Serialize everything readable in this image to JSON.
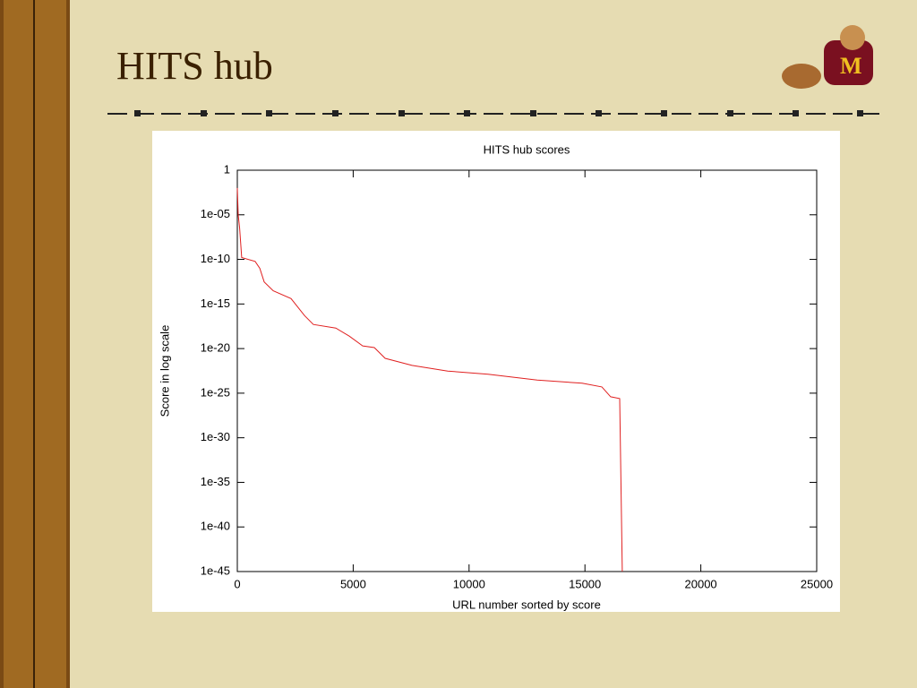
{
  "slide": {
    "title": "HITS hub"
  },
  "chart_data": {
    "type": "line",
    "title": "HITS hub scores",
    "x_label": "URL number sorted by score",
    "y_label": "Score in log scale",
    "log_y": true,
    "grid": false,
    "color": "#e02020",
    "x": [
      0,
      40,
      100,
      190,
      770,
      970,
      1160,
      1550,
      2320,
      2900,
      3280,
      4250,
      4830,
      5410,
      5910,
      6380,
      7540,
      9080,
      10820,
      12940,
      14880,
      15730,
      16110,
      16500,
      16610
    ],
    "values": [
      0.01,
      1e-05,
      3e-07,
      1.6e-10,
      6e-11,
      1e-11,
      3e-13,
      3e-14,
      4e-15,
      5e-17,
      5e-18,
      2e-18,
      2.5e-19,
      2e-20,
      1.3e-20,
      8e-22,
      1.3e-22,
      3e-23,
      1.3e-23,
      3e-24,
      1.3e-24,
      5e-25,
      4e-26,
      2.5e-26,
      1e-45
    ],
    "xlim": [
      0,
      25000
    ],
    "xticks": [
      0,
      5000,
      10000,
      15000,
      20000,
      25000
    ],
    "ylim": [
      1e-45,
      1
    ],
    "yticks": [
      1,
      {
        "value": 1e-05,
        "label": "1e-05"
      },
      {
        "value": 1e-10,
        "label": "1e-10"
      },
      {
        "value": 1e-15,
        "label": "1e-15"
      },
      {
        "value": 1e-20,
        "label": "1e-20"
      },
      {
        "value": 1e-25,
        "label": "1e-25"
      },
      {
        "value": 1e-30,
        "label": "1e-30"
      },
      {
        "value": 1e-35,
        "label": "1e-35"
      },
      {
        "value": 1e-40,
        "label": "1e-40"
      },
      {
        "value": 1e-45,
        "label": "1e-45"
      }
    ]
  }
}
